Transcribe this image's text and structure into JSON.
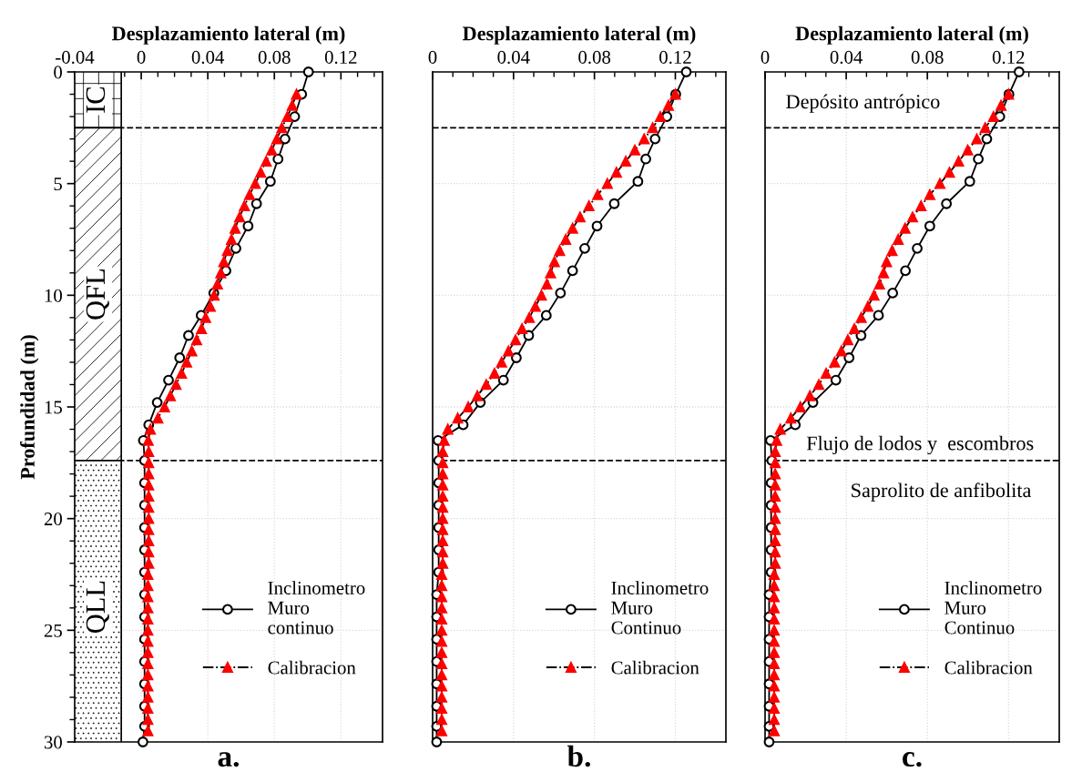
{
  "chart_data": [
    {
      "type": "line",
      "xlabel": "Desplazamiento lateral (m)",
      "ylabel": "Profundidad (m)",
      "xlim": [
        -0.04,
        0.145
      ],
      "xticks": [
        -0.04,
        0,
        0.04,
        0.08,
        0.12
      ],
      "ylim": [
        30,
        0
      ],
      "yticks": [
        0,
        5,
        10,
        15,
        20,
        25,
        30
      ],
      "grid": true,
      "legend": "lower right",
      "series": [
        {
          "name": "Inclinometro\nMuro\ncontinuo",
          "color": "#000000",
          "marker": "circle",
          "line_style": "solid",
          "x": [
            0.1005,
            0.0964,
            0.0922,
            0.0864,
            0.0822,
            0.0776,
            0.0693,
            0.0642,
            0.0569,
            0.0509,
            0.0436,
            0.036,
            0.0284,
            0.0231,
            0.0164,
            0.0096,
            0.0045,
            0.0013,
            0.002,
            0.002,
            0.002,
            0.002,
            0.002,
            0.002,
            0.002,
            0.002,
            0.002,
            0.002,
            0.002,
            0.002,
            0.002,
            0.001
          ],
          "values": [
            0,
            1,
            2,
            3,
            3.9,
            4.9,
            5.9,
            6.9,
            7.9,
            8.9,
            9.9,
            10.9,
            11.8,
            12.8,
            13.8,
            14.8,
            15.8,
            16.5,
            17.4,
            18.4,
            19.4,
            20.4,
            21.4,
            22.4,
            23.4,
            24.4,
            25.4,
            26.4,
            27.4,
            28.4,
            29.3,
            30
          ]
        },
        {
          "name": "Calibracion",
          "color": "#ff0000",
          "marker": "triangle",
          "line_style": "dashdot",
          "x": [
            0.0933,
            0.0907,
            0.0878,
            0.0845,
            0.0815,
            0.0784,
            0.0751,
            0.0718,
            0.0685,
            0.0651,
            0.062,
            0.0591,
            0.0564,
            0.0542,
            0.0518,
            0.0496,
            0.0478,
            0.0458,
            0.0438,
            0.0415,
            0.0387,
            0.0362,
            0.0333,
            0.0304,
            0.0273,
            0.0242,
            0.0209,
            0.0175,
            0.014,
            0.01,
            0.0055,
            0.0042,
            0.0045,
            0.0045,
            0.0045,
            0.0045,
            0.0045,
            0.0045,
            0.0045,
            0.0045,
            0.0045,
            0.0045,
            0.0045,
            0.004,
            0.004,
            0.004,
            0.004,
            0.004,
            0.004,
            0.004,
            0.004,
            0.004,
            0.004,
            0.004,
            0.004,
            0.004,
            0.004,
            0.004
          ],
          "values": [
            1,
            1.5,
            2,
            2.5,
            3,
            3.5,
            4,
            4.5,
            5,
            5.5,
            6,
            6.5,
            7,
            7.5,
            8,
            8.5,
            9,
            9.5,
            10,
            10.5,
            11,
            11.5,
            12,
            12.5,
            13,
            13.5,
            14,
            14.5,
            15,
            15.5,
            16,
            16.5,
            17,
            17.5,
            18,
            18.5,
            19,
            19.5,
            20,
            20.5,
            21,
            21.5,
            22,
            22.5,
            23,
            23.5,
            24,
            24.5,
            25,
            25.5,
            26,
            26.5,
            27,
            27.5,
            28,
            28.5,
            29,
            29.5
          ]
        }
      ],
      "ref_lines": [
        {
          "axis": "y",
          "value": 2.5,
          "line_style": "dashed",
          "color": "#000000"
        },
        {
          "axis": "y",
          "value": 17.4,
          "line_style": "dashed",
          "color": "#000000"
        }
      ],
      "bands": [
        {
          "axis": "y",
          "from": 0,
          "to": 2.5,
          "label": "IC"
        },
        {
          "axis": "y",
          "from": 2.5,
          "to": 17.4,
          "label": "QFL"
        },
        {
          "axis": "y",
          "from": 17.4,
          "to": 30,
          "label": "QLL"
        }
      ],
      "annotations": [
        "a."
      ]
    },
    {
      "type": "line",
      "xlabel": "Desplazamiento lateral (m)",
      "xlim": [
        0,
        0.145
      ],
      "xticks": [
        0,
        0.04,
        0.08,
        0.12
      ],
      "ylim": [
        30,
        0
      ],
      "yticks": [
        0,
        5,
        10,
        15,
        20,
        25,
        30
      ],
      "tick_labels": "x",
      "grid": true,
      "legend": "lower right",
      "series": [
        {
          "name": "Inclinometro\nMuro\nContinuo",
          "color": "#000000",
          "marker": "circle",
          "line_style": "solid",
          "x": [
            0.1254,
            0.1202,
            0.1158,
            0.11,
            0.1054,
            0.1015,
            0.0898,
            0.0813,
            0.0752,
            0.0692,
            0.0632,
            0.0562,
            0.0475,
            0.0414,
            0.035,
            0.0236,
            0.0151,
            0.0027,
            0.003,
            0.003,
            0.003,
            0.003,
            0.003,
            0.003,
            0.002,
            0.002,
            0.002,
            0.002,
            0.002,
            0.002,
            0.002,
            0.002
          ],
          "values": [
            0,
            1,
            2,
            3,
            3.9,
            4.9,
            5.9,
            6.9,
            7.9,
            8.9,
            9.9,
            10.9,
            11.8,
            12.8,
            13.8,
            14.8,
            15.8,
            16.5,
            17.4,
            18.4,
            19.4,
            20.4,
            21.4,
            22.4,
            23.4,
            24.4,
            25.4,
            26.4,
            27.4,
            28.4,
            29.3,
            30
          ]
        },
        {
          "name": "Calibracion",
          "color": "#ff0000",
          "marker": "triangle",
          "line_style": "dashdot",
          "x": [
            0.12,
            0.1166,
            0.1126,
            0.1088,
            0.1046,
            0.1,
            0.0955,
            0.0909,
            0.0864,
            0.0816,
            0.0773,
            0.0729,
            0.0692,
            0.0658,
            0.0628,
            0.0602,
            0.0583,
            0.0565,
            0.0538,
            0.0508,
            0.0478,
            0.0442,
            0.041,
            0.0375,
            0.0341,
            0.0306,
            0.0265,
            0.0221,
            0.0176,
            0.0124,
            0.0075,
            0.0057,
            0.005,
            0.005,
            0.005,
            0.005,
            0.005,
            0.005,
            0.005,
            0.005,
            0.005,
            0.005,
            0.005,
            0.0045,
            0.0045,
            0.0045,
            0.0045,
            0.0045,
            0.0045,
            0.0045,
            0.0045,
            0.0045,
            0.0045,
            0.0045,
            0.0045,
            0.0045,
            0.0045,
            0.0045
          ],
          "values": [
            1,
            1.5,
            2,
            2.5,
            3,
            3.5,
            4,
            4.5,
            5,
            5.5,
            6,
            6.5,
            7,
            7.5,
            8,
            8.5,
            9,
            9.5,
            10,
            10.5,
            11,
            11.5,
            12,
            12.5,
            13,
            13.5,
            14,
            14.5,
            15,
            15.5,
            16,
            16.5,
            17,
            17.5,
            18,
            18.5,
            19,
            19.5,
            20,
            20.5,
            21,
            21.5,
            22,
            22.5,
            23,
            23.5,
            24,
            24.5,
            25,
            25.5,
            26,
            26.5,
            27,
            27.5,
            28,
            28.5,
            29,
            29.5
          ]
        }
      ],
      "ref_lines": [
        {
          "axis": "y",
          "value": 2.5,
          "line_style": "dashed",
          "color": "#000000"
        },
        {
          "axis": "y",
          "value": 17.4,
          "line_style": "dashed",
          "color": "#000000"
        }
      ],
      "annotations": [
        "b."
      ]
    },
    {
      "type": "line",
      "xlabel": "Desplazamiento lateral (m)",
      "xlim": [
        0,
        0.145
      ],
      "xticks": [
        0,
        0.04,
        0.08,
        0.12
      ],
      "ylim": [
        30,
        0
      ],
      "yticks": [
        0,
        5,
        10,
        15,
        20,
        25,
        30
      ],
      "tick_labels": "x",
      "grid": true,
      "legend": "lower right",
      "series": [
        {
          "name": "Inclinometro\nMuro\nContinuo",
          "color": "#000000",
          "marker": "circle",
          "line_style": "solid",
          "x": [
            0.1252,
            0.1202,
            0.1157,
            0.1093,
            0.1051,
            0.1009,
            0.0894,
            0.0812,
            0.075,
            0.0692,
            0.0629,
            0.0559,
            0.0473,
            0.0414,
            0.0349,
            0.0236,
            0.0149,
            0.0027,
            0.0033,
            0.003,
            0.003,
            0.003,
            0.003,
            0.003,
            0.002,
            0.002,
            0.002,
            0.002,
            0.002,
            0.002,
            0.002,
            0.002
          ],
          "values": [
            0,
            1,
            2,
            3,
            3.9,
            4.9,
            5.9,
            6.9,
            7.9,
            8.9,
            9.9,
            10.9,
            11.8,
            12.8,
            13.8,
            14.8,
            15.8,
            16.5,
            17.4,
            18.4,
            19.4,
            20.4,
            21.4,
            22.4,
            23.4,
            24.4,
            25.4,
            26.4,
            27.4,
            28.4,
            29.3,
            30
          ]
        },
        {
          "name": "Calibracion",
          "color": "#ff0000",
          "marker": "triangle",
          "line_style": "dashdot",
          "x": [
            0.12,
            0.1163,
            0.1126,
            0.1085,
            0.1044,
            0.0999,
            0.0954,
            0.0909,
            0.0862,
            0.0812,
            0.0769,
            0.0727,
            0.069,
            0.0656,
            0.0626,
            0.0599,
            0.0584,
            0.0564,
            0.0537,
            0.0507,
            0.0474,
            0.044,
            0.0408,
            0.0376,
            0.0343,
            0.0301,
            0.0265,
            0.0221,
            0.0174,
            0.0127,
            0.0075,
            0.0057,
            0.005,
            0.005,
            0.005,
            0.005,
            0.005,
            0.005,
            0.005,
            0.005,
            0.005,
            0.005,
            0.005,
            0.0045,
            0.0045,
            0.0045,
            0.0045,
            0.0045,
            0.0045,
            0.0045,
            0.0045,
            0.0045,
            0.0045,
            0.0045,
            0.0045,
            0.0045,
            0.0045,
            0.0045
          ],
          "values": [
            1,
            1.5,
            2,
            2.5,
            3,
            3.5,
            4,
            4.5,
            5,
            5.5,
            6,
            6.5,
            7,
            7.5,
            8,
            8.5,
            9,
            9.5,
            10,
            10.5,
            11,
            11.5,
            12,
            12.5,
            13,
            13.5,
            14,
            14.5,
            15,
            15.5,
            16,
            16.5,
            17,
            17.5,
            18,
            18.5,
            19,
            19.5,
            20,
            20.5,
            21,
            21.5,
            22,
            22.5,
            23,
            23.5,
            24,
            24.5,
            25,
            25.5,
            26,
            26.5,
            27,
            27.5,
            28,
            28.5,
            29,
            29.5
          ]
        }
      ],
      "ref_lines": [
        {
          "axis": "y",
          "value": 2.5,
          "line_style": "dashed",
          "color": "#000000"
        },
        {
          "axis": "y",
          "value": 17.4,
          "line_style": "dashed",
          "color": "#000000"
        }
      ],
      "annotations": [
        "Depósito antrópico",
        "Flujo de lodos y  escombros",
        "Saprolito de anfibolita",
        "c."
      ]
    }
  ]
}
